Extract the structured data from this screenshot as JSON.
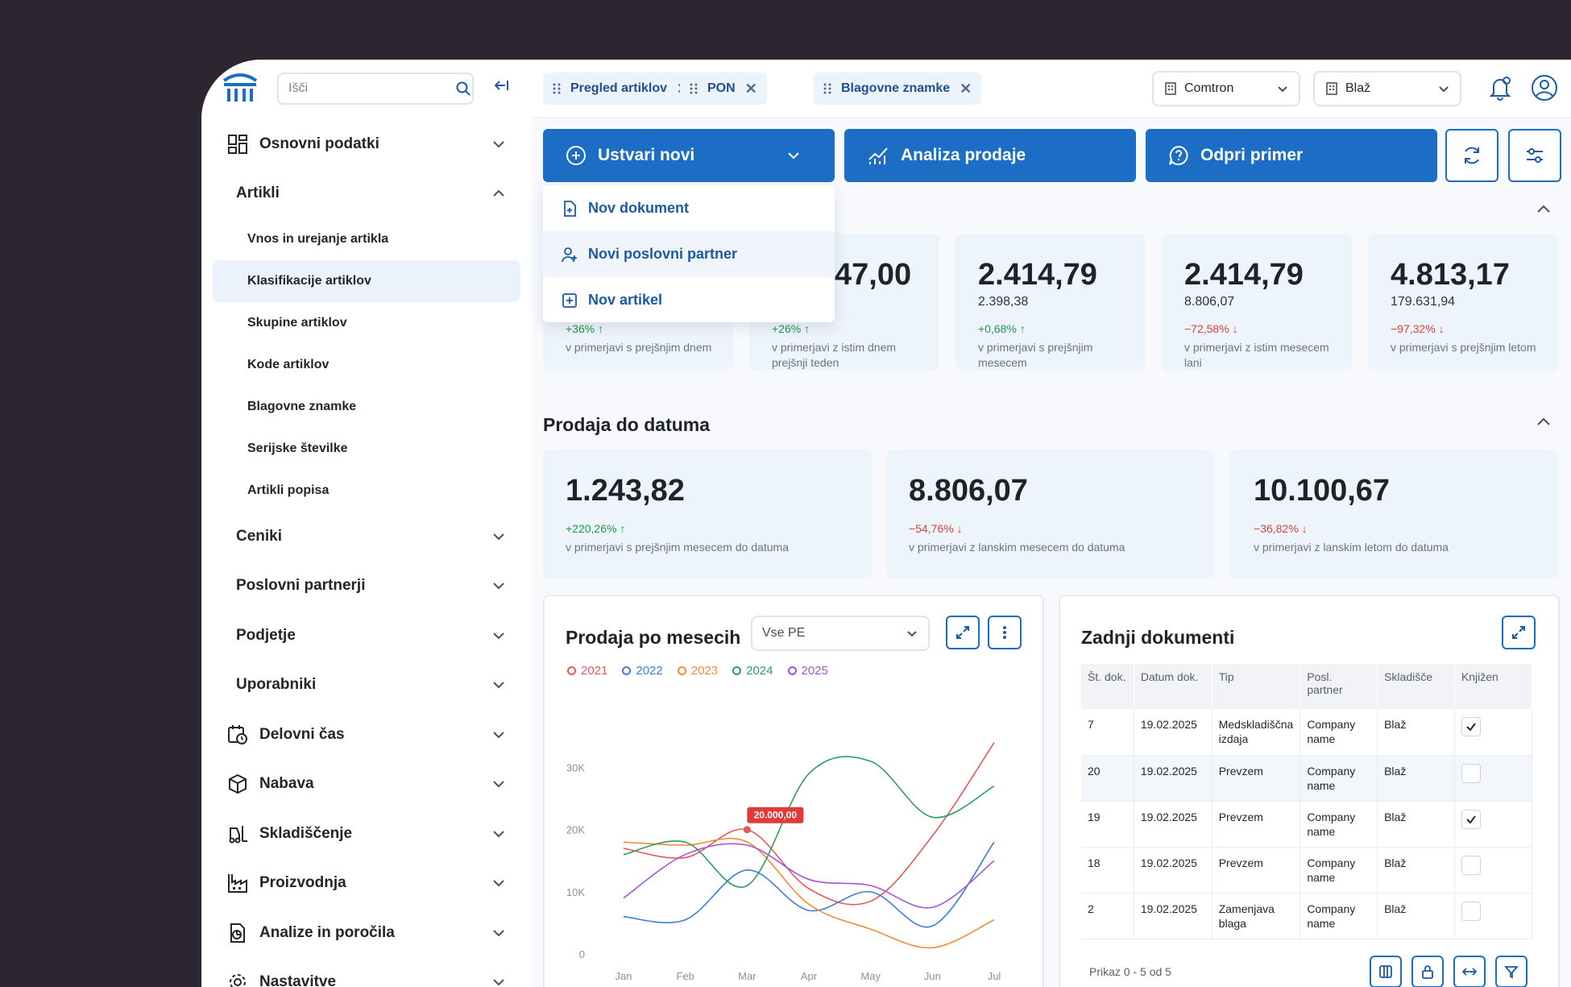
{
  "sidebar": {
    "search_placeholder": "Išči",
    "items": [
      {
        "label": "Osnovni podatki",
        "icon": "grid-icon"
      },
      {
        "label": "Artikli"
      },
      {
        "label": "Ceniki"
      },
      {
        "label": "Poslovni partnerji"
      },
      {
        "label": "Podjetje"
      },
      {
        "label": "Uporabniki"
      },
      {
        "label": "Delovni čas",
        "icon": "calendar-clock-icon"
      },
      {
        "label": "Nabava",
        "icon": "box-icon"
      },
      {
        "label": "Skladiščenje",
        "icon": "forklift-icon"
      },
      {
        "label": "Proizvodnja",
        "icon": "factory-icon"
      },
      {
        "label": "Analize in poročila",
        "icon": "report-icon"
      },
      {
        "label": "Nastavitve",
        "icon": "gear-icon"
      }
    ],
    "sub_items": [
      "Vnos in urejanje artikla",
      "Klasifikacije artiklov",
      "Skupine artiklov",
      "Kode artiklov",
      "Blagovne znamke",
      "Serijske številke",
      "Artikli popisa"
    ]
  },
  "tabs": [
    "Pregled artiklov",
    "PON",
    "Blagovne znamke"
  ],
  "company_select": "Comtron",
  "user_select": "Blaž",
  "actions": {
    "create": "Ustvari novi",
    "analysis": "Analiza prodaje",
    "open_case": "Odpri primer"
  },
  "dropdown": [
    "Nov dokument",
    "Novi poslovni partner",
    "Nov artikel"
  ],
  "stats": [
    {
      "value": "",
      "sub": "",
      "pct": "+36%",
      "dir": "up",
      "cmp": "v primerjavi s prejšnjim dnem"
    },
    {
      "value": "47,00",
      "sub": "",
      "pct": "+26%",
      "dir": "up",
      "cmp": "v primerjavi z istim dnem prejšnji teden"
    },
    {
      "value": "2.414,79",
      "sub": "2.398,38",
      "pct": "+0,68%",
      "dir": "up",
      "cmp": "v primerjavi s prejšnjim mesecem"
    },
    {
      "value": "2.414,79",
      "sub": "8.806,07",
      "pct": "−72,58%",
      "dir": "down",
      "cmp": "v primerjavi z istim mesecem lani"
    },
    {
      "value": "4.813,17",
      "sub": "179.631,94",
      "pct": "−97,32%",
      "dir": "down",
      "cmp": "v primerjavi s prejšnjim letom"
    }
  ],
  "section_title": "Prodaja do datuma",
  "date_stats": [
    {
      "value": "1.243,82",
      "pct": "+220,26%",
      "dir": "up",
      "cmp": "v primerjavi s prejšnjim mesecem do datuma"
    },
    {
      "value": "8.806,07",
      "pct": "−54,76%",
      "dir": "down",
      "cmp": "v primerjavi z lanskim mesecem do datuma"
    },
    {
      "value": "10.100,67",
      "pct": "−36,82%",
      "dir": "down",
      "cmp": "v primerjavi z lanskim letom do datuma"
    }
  ],
  "chart_panel": {
    "title": "Prodaja po mesecih",
    "filter": "Vse PE"
  },
  "chart_data": {
    "type": "line",
    "categories": [
      "Jan",
      "Feb",
      "Mar",
      "Apr",
      "May",
      "Jun",
      "Jul"
    ],
    "y_ticks": [
      "0",
      "10K",
      "20K",
      "30K"
    ],
    "ylim": [
      0,
      35000
    ],
    "tooltip": "20.000,00",
    "series": [
      {
        "name": "2021",
        "color": "#e35a5a",
        "values": [
          17000,
          15500,
          20000,
          10500,
          8500,
          19000,
          34000
        ]
      },
      {
        "name": "2022",
        "color": "#3b7dd8",
        "values": [
          6000,
          5500,
          13500,
          7000,
          10000,
          4500,
          18000
        ]
      },
      {
        "name": "2023",
        "color": "#f08c3a",
        "values": [
          18000,
          17500,
          18000,
          8000,
          4000,
          1000,
          5500
        ]
      },
      {
        "name": "2024",
        "color": "#2f9e5a",
        "values": [
          16000,
          18000,
          11000,
          29000,
          31000,
          22000,
          27000
        ]
      },
      {
        "name": "2025",
        "color": "#a155d6",
        "values": [
          9000,
          16000,
          17500,
          12000,
          11000,
          7500,
          15000
        ]
      }
    ]
  },
  "docs_panel": {
    "title": "Zadnji dokumenti",
    "headers": [
      "Št. dok.",
      "Datum dok.",
      "Tip",
      "Posl. partner",
      "Skladišče",
      "Knjižen"
    ],
    "rows": [
      {
        "st": "7",
        "date": "19.02.2025",
        "tip": "Medskladiščna izdaja",
        "partner": "Company name",
        "sklad": "Blaž",
        "knjizen": true
      },
      {
        "st": "20",
        "date": "19.02.2025",
        "tip": "Prevzem",
        "partner": "Company name",
        "sklad": "Blaž",
        "knjizen": false
      },
      {
        "st": "19",
        "date": "19.02.2025",
        "tip": "Prevzem",
        "partner": "Company name",
        "sklad": "Blaž",
        "knjizen": true
      },
      {
        "st": "18",
        "date": "19.02.2025",
        "tip": "Prevzem",
        "partner": "Company name",
        "sklad": "Blaž",
        "knjizen": false
      },
      {
        "st": "2",
        "date": "19.02.2025",
        "tip": "Zamenjava blaga",
        "partner": "Company name",
        "sklad": "Blaž",
        "knjizen": false
      }
    ],
    "footer": "Prikaz 0 - 5 od 5"
  }
}
